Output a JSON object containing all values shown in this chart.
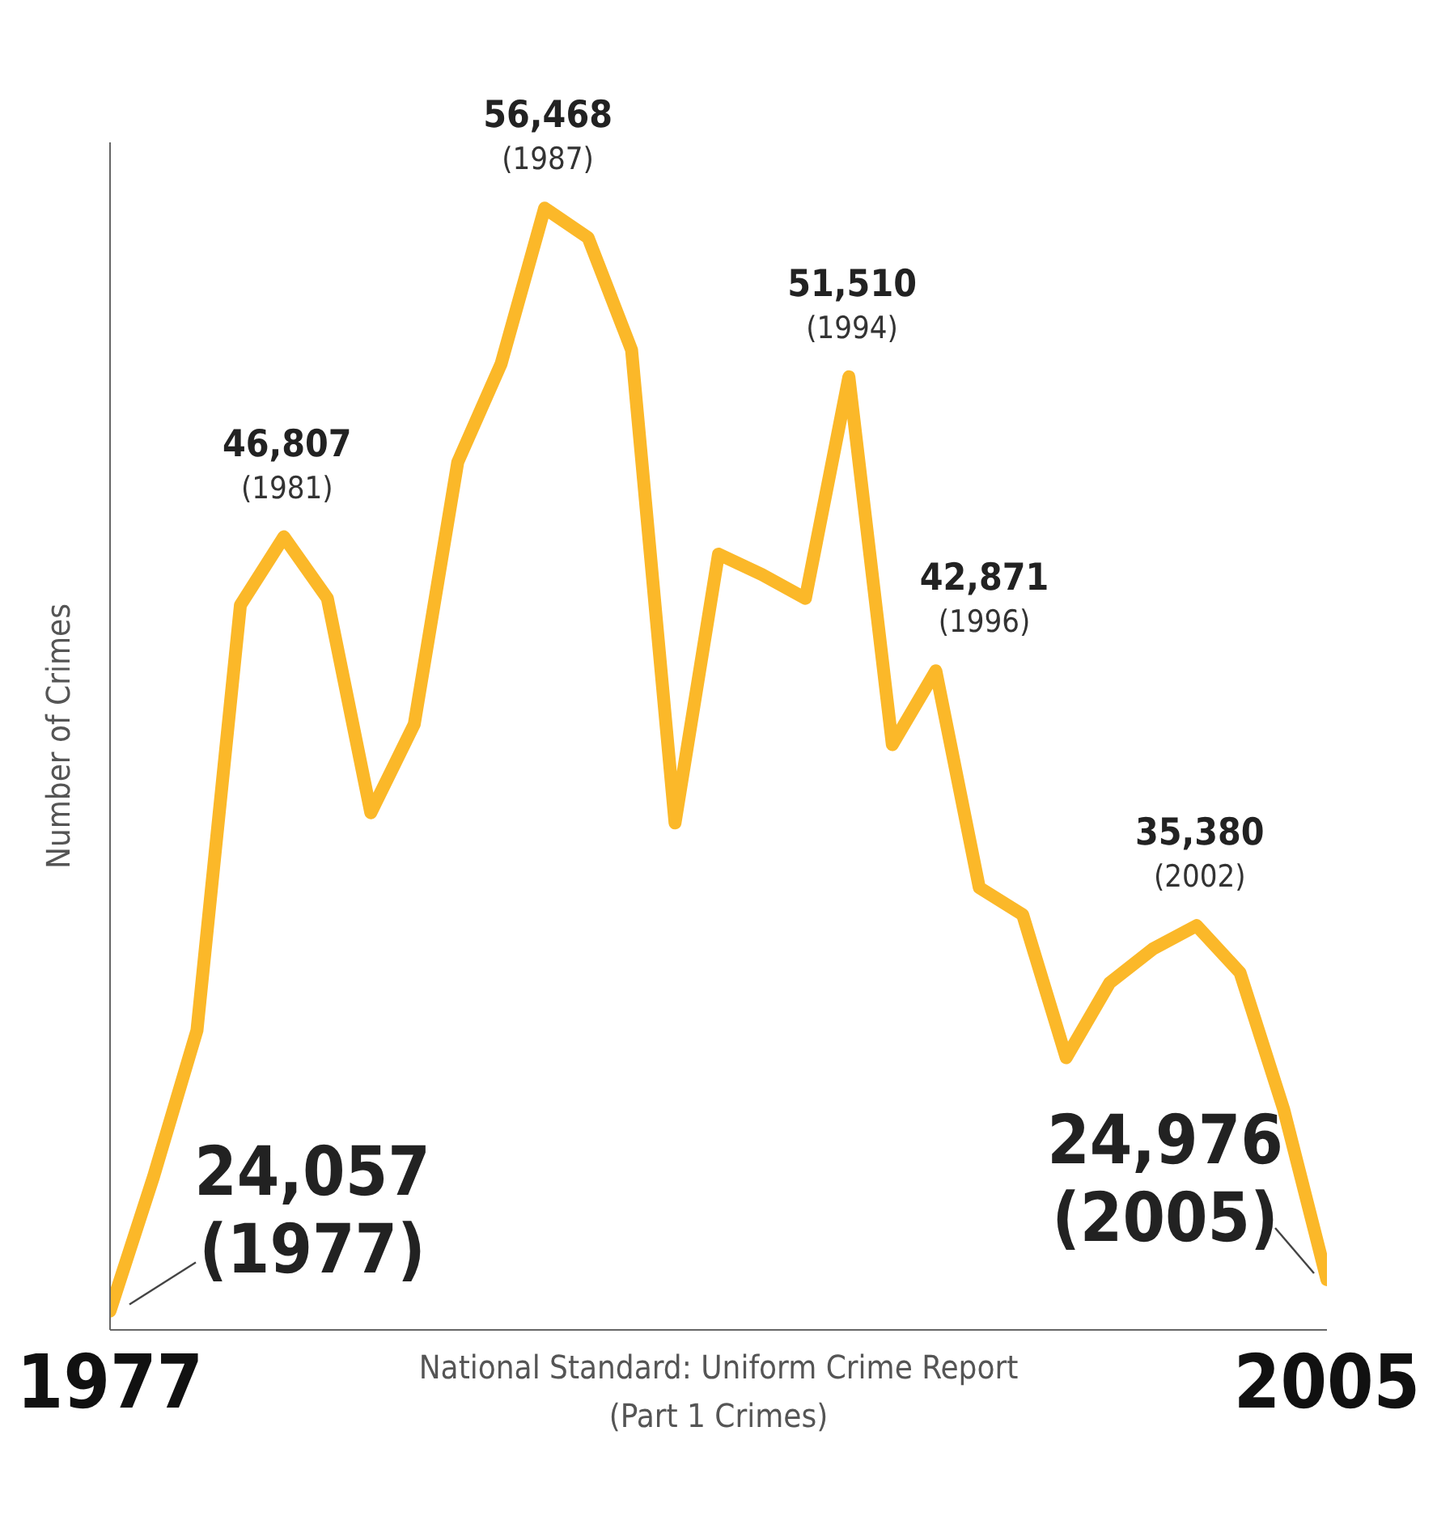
{
  "chart_data": {
    "type": "line",
    "xlabel": "National Standard: Uniform Crime Report (Part 1 Crimes)",
    "ylabel": "Number of Crimes",
    "x": [
      1977,
      1978,
      1979,
      1980,
      1981,
      1982,
      1983,
      1984,
      1985,
      1986,
      1987,
      1988,
      1989,
      1990,
      1991,
      1992,
      1993,
      1994,
      1995,
      1996,
      1997,
      1998,
      1999,
      2000,
      2001,
      2002,
      2003,
      2004,
      2005
    ],
    "series": [
      {
        "color": "#fbb829",
        "values": [
          24057,
          28000,
          32300,
          44800,
          46807,
          45000,
          38700,
          41300,
          49000,
          51900,
          56468,
          55600,
          52300,
          38400,
          46300,
          45700,
          45000,
          51510,
          40700,
          42871,
          36500,
          35700,
          31500,
          33700,
          34700,
          35380,
          34000,
          30000,
          24976
        ],
        "value_labels": [
          "24,057 (1977)",
          null,
          null,
          null,
          "46,807 (1981)",
          null,
          null,
          null,
          null,
          null,
          "56,468 (1987)",
          null,
          null,
          null,
          null,
          null,
          null,
          "51,510 (1994)",
          null,
          "42,871 (1996)",
          null,
          null,
          null,
          null,
          null,
          "35,380 (2002)",
          null,
          null,
          "24,976 (2005)"
        ]
      }
    ],
    "xlim": [
      1977,
      2005
    ],
    "xticks": [
      1977,
      2005
    ],
    "ylim": [
      23500,
      58400
    ],
    "grid": false,
    "legend": false,
    "marker": "none",
    "line_style": "solid"
  }
}
